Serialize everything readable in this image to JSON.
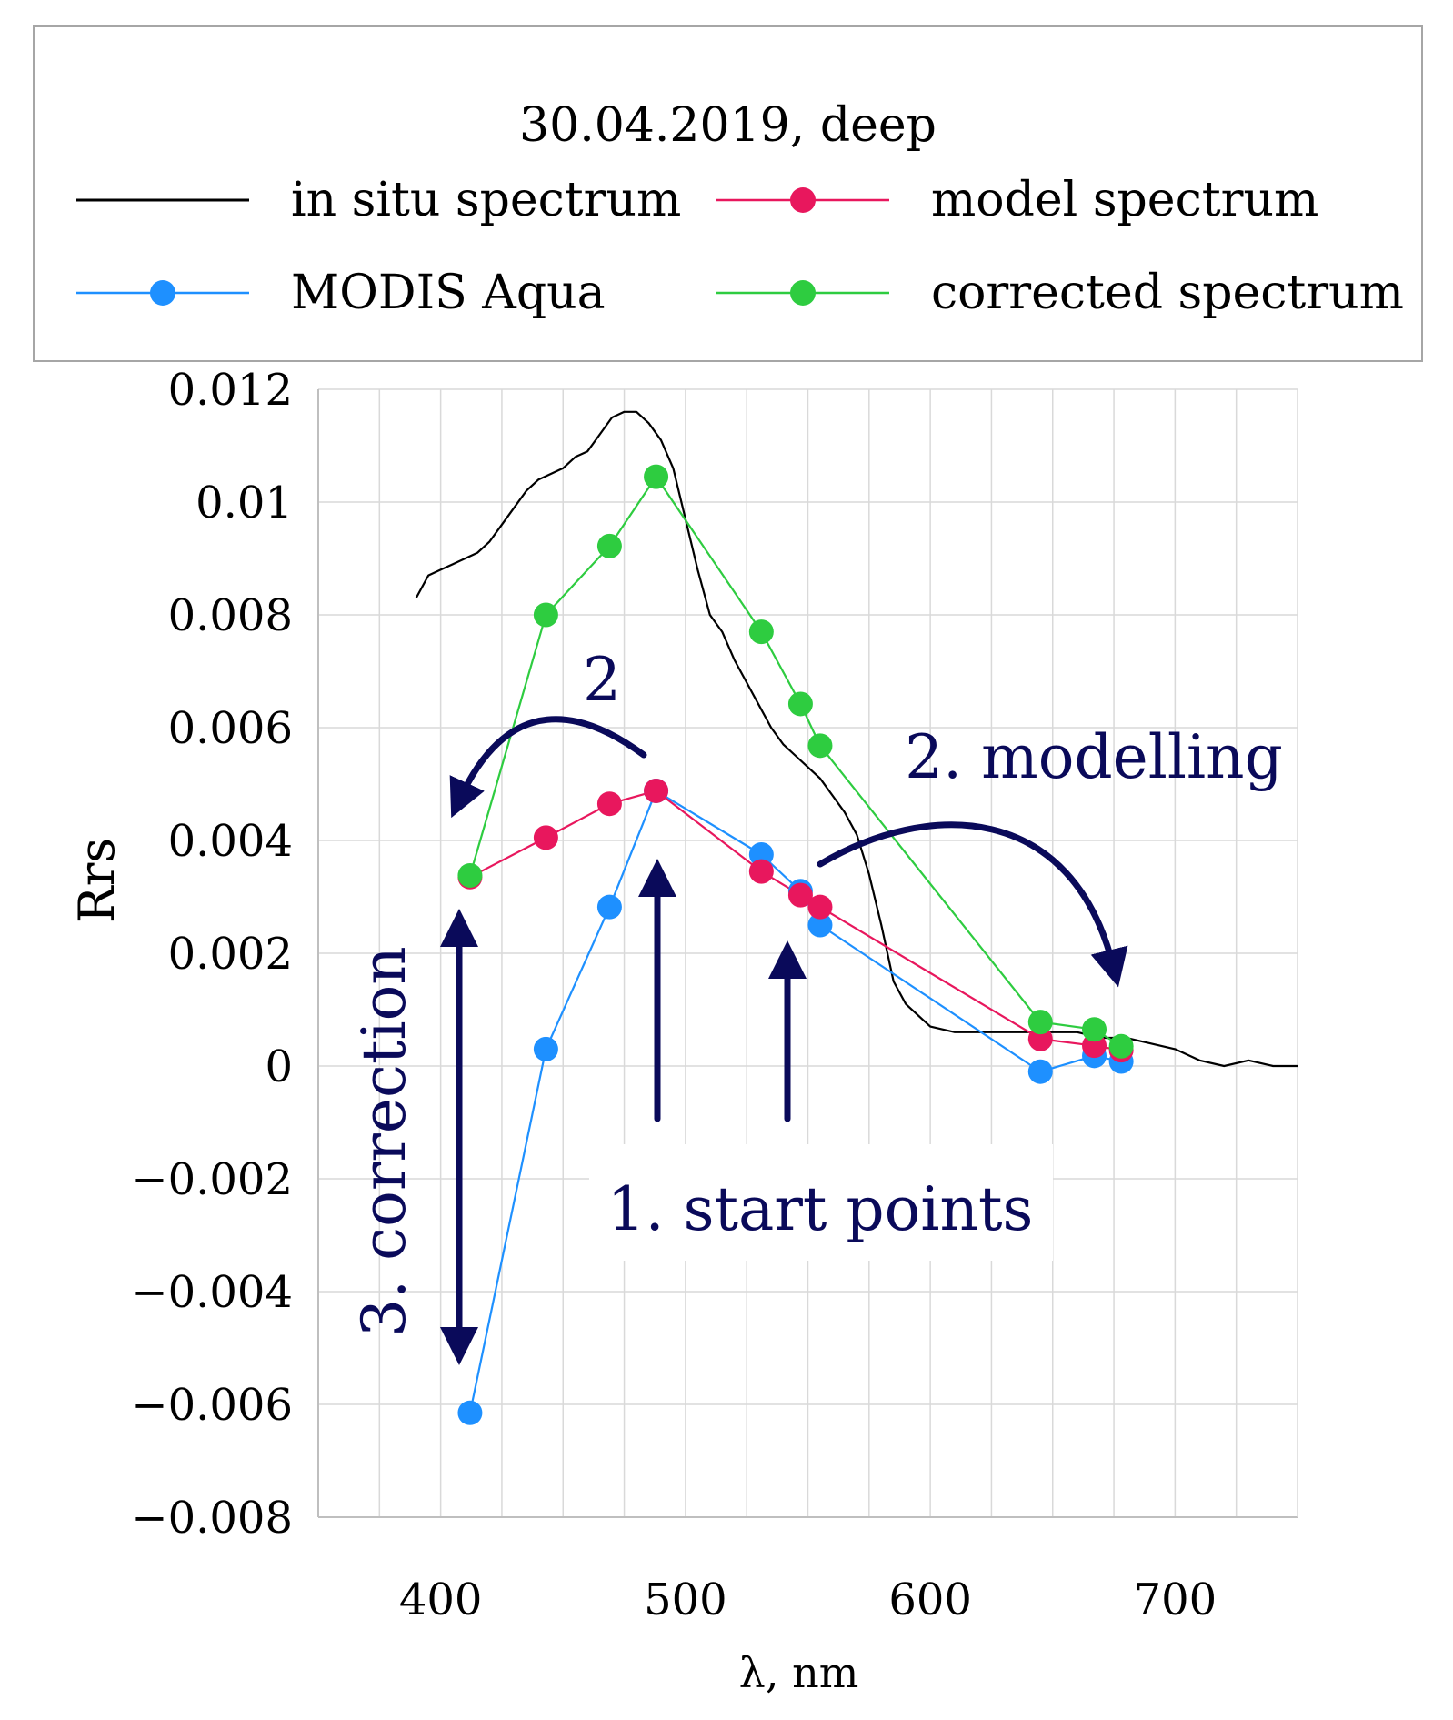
{
  "legend": {
    "title": "30.04.2019, deep",
    "entries": [
      {
        "label": "in situ spectrum",
        "color": "#000000",
        "marker": false
      },
      {
        "label": "model spectrum",
        "color": "#e8175d",
        "marker": true
      },
      {
        "label": "MODIS Aqua",
        "color": "#1e90ff",
        "marker": true
      },
      {
        "label": "corrected spectrum",
        "color": "#2ecc40",
        "marker": true
      }
    ]
  },
  "annotations": {
    "label_2_small": "2",
    "label_modelling": "2. modelling",
    "label_start_points": "1. start points",
    "label_correction": "3. correction",
    "arrow_color": "#0a0a5a"
  },
  "chart_data": {
    "type": "line",
    "xlabel": "λ, nm",
    "ylabel": "Rrs",
    "xlim": [
      350,
      750
    ],
    "ylim": [
      -0.008,
      0.012
    ],
    "xticks": [
      400,
      500,
      600,
      700
    ],
    "yticks": [
      -0.008,
      -0.006,
      -0.004,
      -0.002,
      0,
      0.002,
      0.004,
      0.006,
      0.008,
      0.01,
      0.012
    ],
    "ytick_labels": [
      "−0.008",
      "−0.006",
      "−0.004",
      "−0.002",
      "0",
      "0.002",
      "0.004",
      "0.006",
      "0.008",
      "0.01",
      "0.012"
    ],
    "xtick_labels": [
      "400",
      "500",
      "600",
      "700"
    ],
    "grid": true,
    "series": [
      {
        "name": "in situ spectrum",
        "color": "#000000",
        "marker": false,
        "x": [
          390,
          395,
          400,
          405,
          410,
          415,
          420,
          425,
          430,
          435,
          440,
          445,
          450,
          455,
          460,
          465,
          470,
          475,
          480,
          485,
          490,
          495,
          500,
          505,
          510,
          515,
          520,
          525,
          530,
          535,
          540,
          545,
          550,
          555,
          560,
          565,
          570,
          575,
          580,
          585,
          590,
          600,
          610,
          620,
          630,
          640,
          650,
          660,
          670,
          680,
          690,
          700,
          710,
          720,
          730,
          740,
          750
        ],
        "y": [
          0.0083,
          0.0087,
          0.0088,
          0.0089,
          0.009,
          0.0091,
          0.0093,
          0.0096,
          0.0099,
          0.0102,
          0.0104,
          0.0105,
          0.0106,
          0.0108,
          0.0109,
          0.0112,
          0.0115,
          0.0116,
          0.0116,
          0.0114,
          0.0111,
          0.0106,
          0.0097,
          0.0088,
          0.008,
          0.0077,
          0.0072,
          0.0068,
          0.0064,
          0.006,
          0.0057,
          0.0055,
          0.0053,
          0.0051,
          0.0048,
          0.0045,
          0.0041,
          0.0034,
          0.0025,
          0.0015,
          0.0011,
          0.0007,
          0.0006,
          0.0006,
          0.0006,
          0.0006,
          0.0006,
          0.0006,
          0.0005,
          0.0005,
          0.0004,
          0.0003,
          0.0001,
          0.0,
          0.0001,
          0.0,
          0.0
        ]
      },
      {
        "name": "model spectrum",
        "color": "#e8175d",
        "marker": true,
        "x": [
          412,
          443,
          469,
          488,
          531,
          547,
          555,
          645,
          667,
          678
        ],
        "y": [
          0.00335,
          0.00405,
          0.00465,
          0.00488,
          0.00345,
          0.00303,
          0.00282,
          0.00048,
          0.00036,
          0.00028
        ]
      },
      {
        "name": "MODIS Aqua",
        "color": "#1e90ff",
        "marker": true,
        "x": [
          412,
          443,
          469,
          488,
          531,
          547,
          555,
          645,
          667,
          678
        ],
        "y": [
          -0.00615,
          0.0003,
          0.00282,
          0.00488,
          0.00375,
          0.0031,
          0.0025,
          -0.0001,
          0.00018,
          8e-05
        ]
      },
      {
        "name": "corrected spectrum",
        "color": "#2ecc40",
        "marker": true,
        "x": [
          412,
          443,
          469,
          488,
          531,
          547,
          555,
          645,
          667,
          678
        ],
        "y": [
          0.00338,
          0.008,
          0.00922,
          0.01045,
          0.0077,
          0.00642,
          0.00568,
          0.00078,
          0.00065,
          0.00035
        ]
      }
    ]
  }
}
